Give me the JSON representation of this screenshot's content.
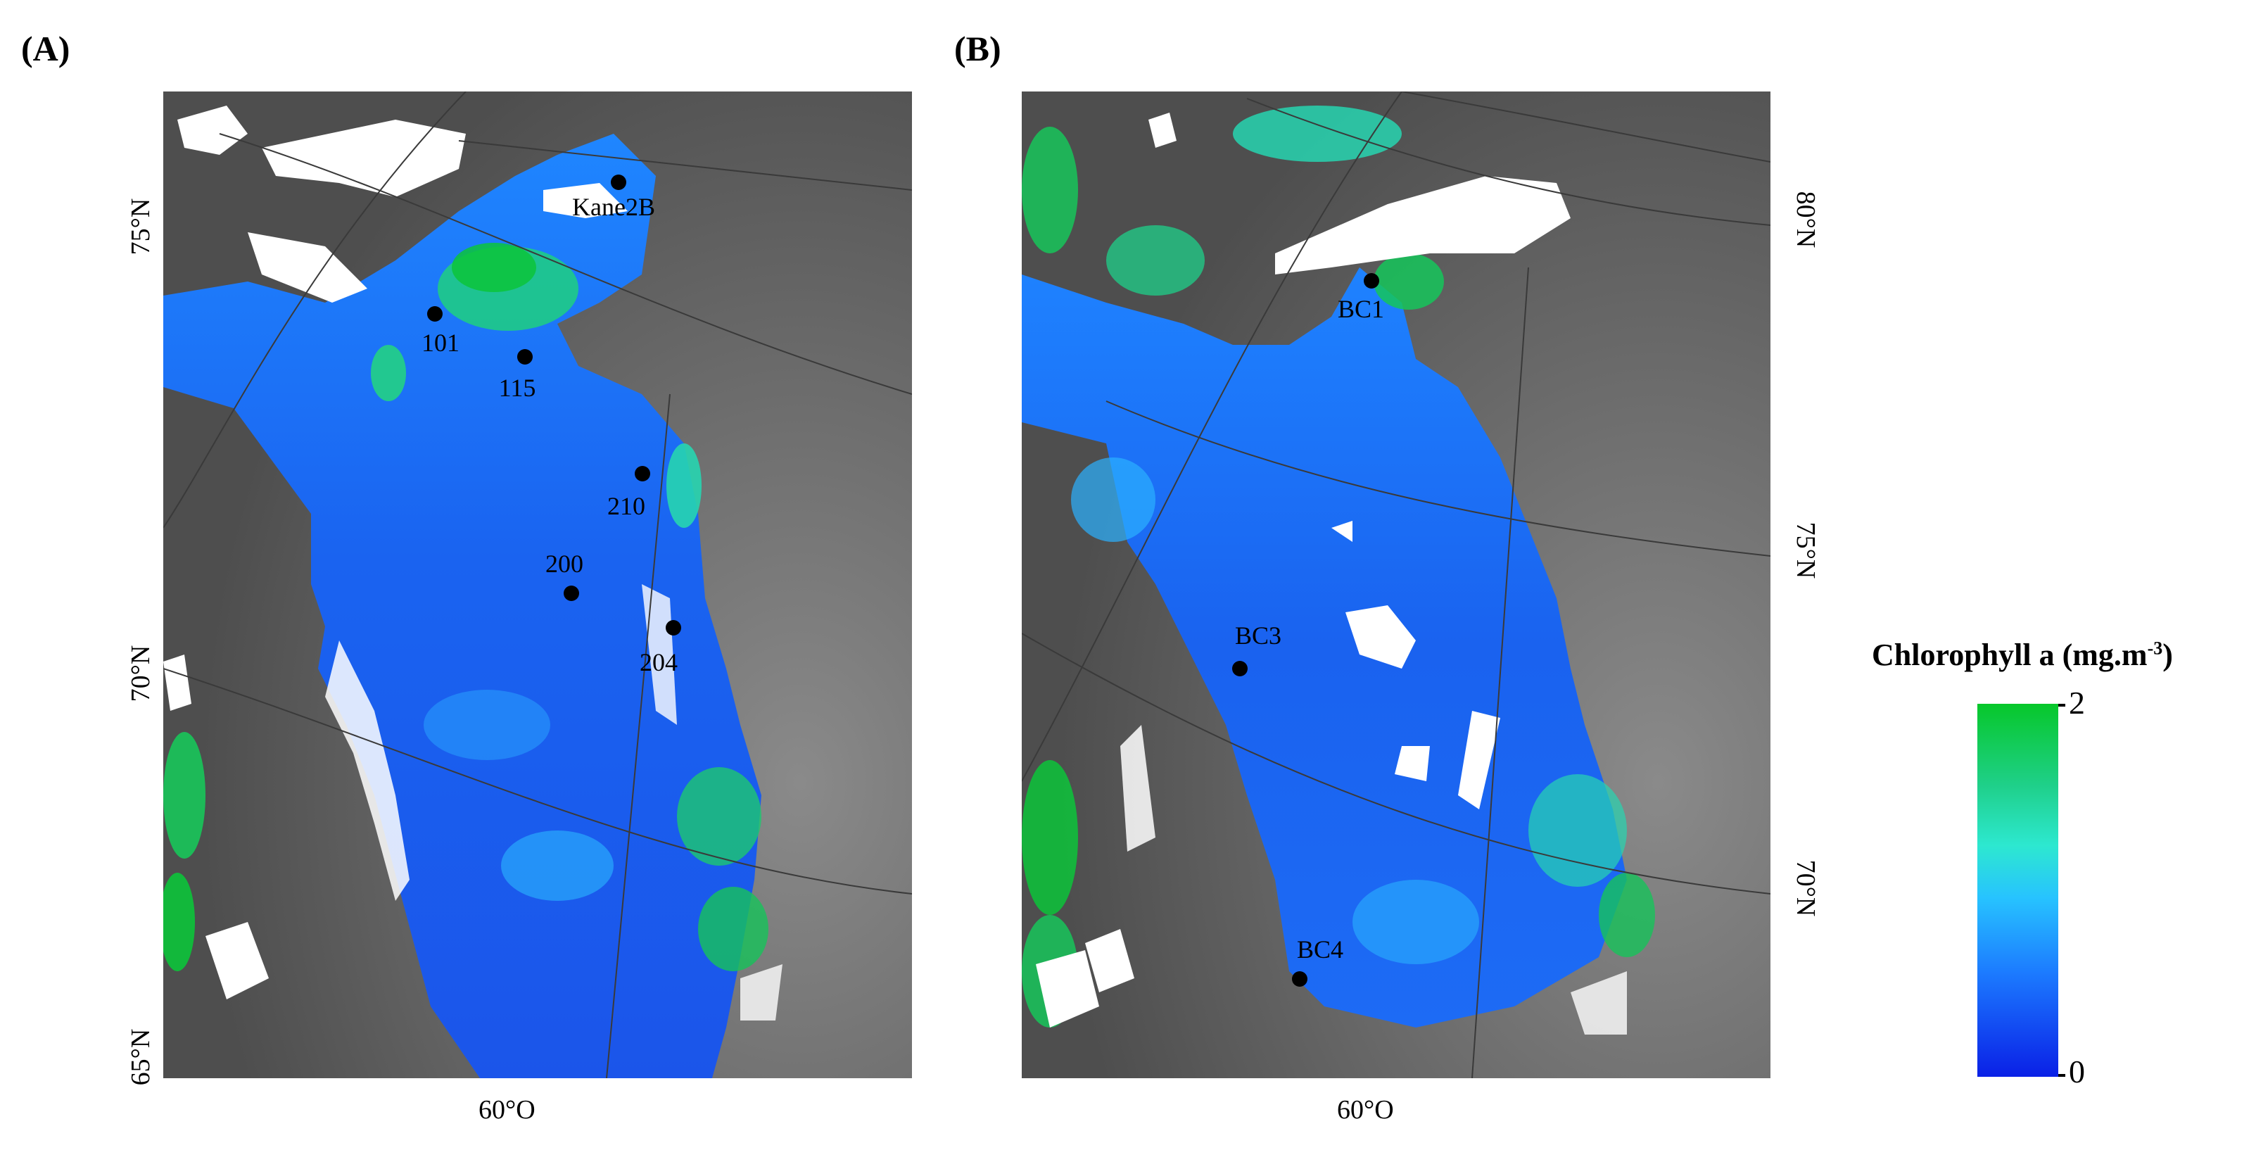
{
  "panels": [
    {
      "id": "A",
      "label": "(A)",
      "lat_labels": [
        "75°N",
        "70°N",
        "65°N"
      ],
      "lon_labels": [
        "60°O"
      ],
      "stations": [
        {
          "name": "Kane2B"
        },
        {
          "name": "101"
        },
        {
          "name": "115"
        },
        {
          "name": "210"
        },
        {
          "name": "200"
        },
        {
          "name": "204"
        }
      ]
    },
    {
      "id": "B",
      "label": "(B)",
      "lat_labels": [
        "80°N",
        "75°N",
        "70°N"
      ],
      "lon_labels": [
        "60°O"
      ],
      "stations": [
        {
          "name": "BC1"
        },
        {
          "name": "BC3"
        },
        {
          "name": "BC4"
        }
      ]
    }
  ],
  "colorbar": {
    "title": "Chlorophyll a (mg.m",
    "title_superscript": "-3",
    "title_suffix": ")",
    "max_label": "2",
    "min_label": "0",
    "min_value": 0,
    "max_value": 2,
    "color_low": "#0a20e6",
    "color_high": "#07c72a"
  },
  "colors": {
    "land": "#5f5f5f",
    "ice": "#ffffff",
    "ocean_mid": "#1c7bff",
    "station": "#000000"
  }
}
